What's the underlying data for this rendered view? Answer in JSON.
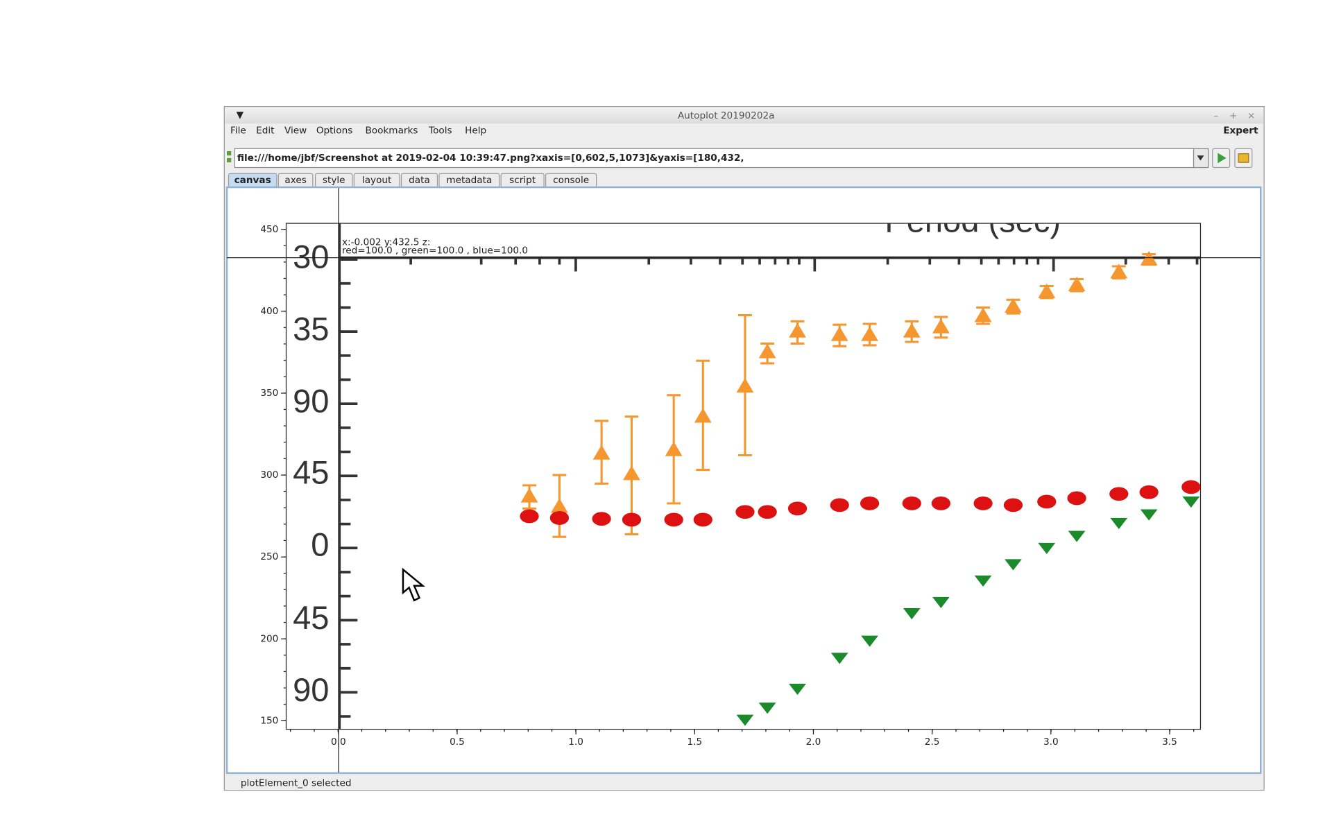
{
  "window": {
    "title": "Autoplot 20190202a",
    "controls": [
      "–",
      "+",
      "×"
    ]
  },
  "menu": {
    "items": [
      "File",
      "Edit",
      "View",
      "Options",
      "Bookmarks",
      "Tools",
      "Help"
    ],
    "expert": "Expert"
  },
  "address": {
    "url": "file:///home/jbf/Screenshot at 2019-02-04 10:39:47.png?xaxis=[0,602,5,1073]&yaxis=[180,432,"
  },
  "tabs": [
    "canvas",
    "axes",
    "style",
    "layout",
    "data",
    "metadata",
    "script",
    "console"
  ],
  "plot": {
    "xlim": [
      -0.22,
      3.63
    ],
    "ylim": [
      144.8,
      453.7
    ],
    "xticks": [
      {
        "value": 0,
        "label": "0.0"
      },
      0.5,
      {
        "value": 1,
        "label": "1.0"
      },
      1.5,
      {
        "value": 2,
        "label": "2.0"
      },
      2.5,
      {
        "value": 3,
        "label": "3.0"
      },
      3.5
    ],
    "yticks": [
      150,
      200,
      250,
      300,
      350,
      400,
      450
    ],
    "readout": [
      "x:-0.002  y:432.5  z:",
      "red=100.0 , green=100.0 , blue=100.0"
    ],
    "image_title": "Period (sec)",
    "image_labels": [
      "30",
      "35",
      "90",
      "45",
      "0",
      "45",
      "90"
    ]
  },
  "status": "plotElement_0 selected"
}
